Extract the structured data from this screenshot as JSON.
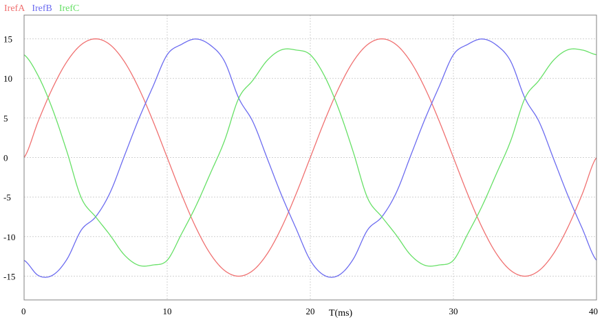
{
  "chart_data": {
    "type": "line",
    "title": "",
    "xlabel": "T(ms)",
    "ylabel": "",
    "xlim": [
      0,
      40
    ],
    "ylim": [
      -18,
      18
    ],
    "x_ticks": [
      0,
      10,
      20,
      30,
      40
    ],
    "y_ticks": [
      15,
      10,
      5,
      0,
      -5,
      -10,
      -15
    ],
    "x_tick_labels": [
      "0",
      "10",
      "20",
      "30",
      "40"
    ],
    "y_tick_labels": [
      "15",
      "10",
      "5",
      "0",
      "-5",
      "-10",
      "-15"
    ],
    "grid": true,
    "legend_position": "top-left",
    "series": [
      {
        "name": "IrefA",
        "color": "#f07070",
        "x": [
          0,
          1,
          2,
          3,
          4,
          5,
          6,
          7,
          8,
          9,
          10,
          11,
          12,
          13,
          14,
          15,
          16,
          17,
          18,
          19,
          20,
          21,
          22,
          23,
          24,
          25,
          26,
          27,
          28,
          29,
          30,
          31,
          32,
          33,
          34,
          35,
          36,
          37,
          38,
          39,
          40
        ],
        "y": [
          0,
          4.64,
          8.82,
          12.14,
          14.27,
          15,
          14.27,
          12.14,
          8.82,
          4.64,
          0,
          -4.64,
          -8.82,
          -12.14,
          -14.27,
          -15,
          -14.27,
          -12.14,
          -8.82,
          -4.64,
          0,
          4.64,
          8.82,
          12.14,
          14.27,
          15,
          14.27,
          12.14,
          8.82,
          4.64,
          0,
          -4.64,
          -8.82,
          -12.14,
          -14.27,
          -15,
          -14.27,
          -12.14,
          -8.82,
          -4.64,
          0
        ]
      },
      {
        "name": "IrefB",
        "color": "#6b6bf0",
        "x": [
          0,
          1,
          2,
          3,
          4,
          5,
          6,
          7,
          8,
          9,
          10,
          11,
          12,
          13,
          14,
          15,
          16,
          17,
          18,
          19,
          20,
          21,
          22,
          23,
          24,
          25,
          26,
          27,
          28,
          29,
          30,
          31,
          32,
          33,
          34,
          35,
          36,
          37,
          38,
          39,
          40
        ],
        "y": [
          -12.99,
          -14.92,
          -14.87,
          -12.85,
          -9.16,
          -7.5,
          -4.48,
          0.16,
          4.8,
          8.95,
          12.99,
          14.3,
          14.98,
          14.22,
          12.18,
          7.5,
          4.48,
          -0.16,
          -4.8,
          -8.95,
          -12.99,
          -14.92,
          -14.87,
          -12.85,
          -9.16,
          -7.5,
          -4.48,
          0.16,
          4.8,
          8.95,
          12.99,
          14.3,
          14.98,
          14.22,
          12.18,
          7.5,
          4.48,
          -0.16,
          -4.8,
          -8.95,
          -12.99
        ]
      },
      {
        "name": "IrefC",
        "color": "#66e066",
        "x": [
          0,
          1,
          2,
          3,
          4,
          5,
          6,
          7,
          8,
          9,
          10,
          11,
          12,
          13,
          14,
          15,
          16,
          17,
          18,
          19,
          20,
          21,
          22,
          23,
          24,
          25,
          26,
          27,
          28,
          29,
          30,
          31,
          32,
          33,
          34,
          35,
          36,
          37,
          38,
          39,
          40
        ],
        "y": [
          12.99,
          10.28,
          6.05,
          0.71,
          -5.11,
          -7.5,
          -9.79,
          -12.3,
          -13.62,
          -13.59,
          -12.99,
          -9.66,
          -6.16,
          -2.08,
          2.09,
          7.5,
          9.79,
          12.3,
          13.62,
          13.59,
          12.99,
          10.28,
          6.05,
          0.71,
          -5.11,
          -7.5,
          -9.79,
          -12.3,
          -13.62,
          -13.59,
          -12.99,
          -9.66,
          -6.16,
          -2.08,
          2.09,
          7.5,
          9.79,
          12.3,
          13.62,
          13.59,
          12.99
        ]
      }
    ]
  }
}
